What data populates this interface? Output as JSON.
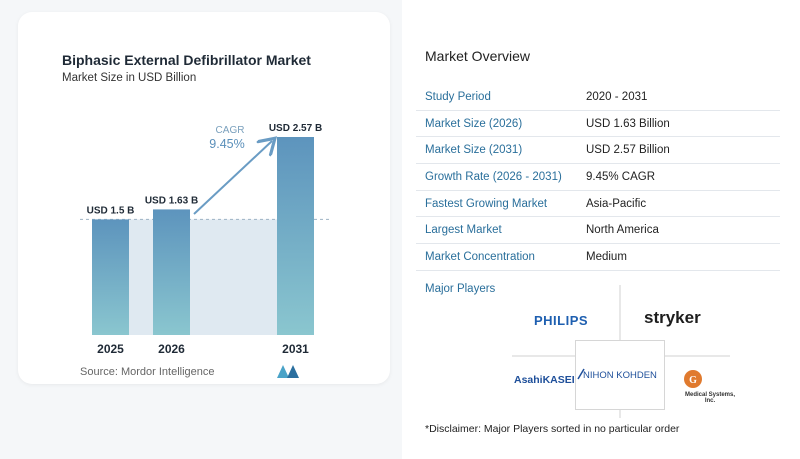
{
  "chart": {
    "title": "Biphasic External Defibrillator Market",
    "subtitle": "Market Size in USD Billion",
    "cagr_label": "CAGR",
    "cagr_value": "9.45%",
    "source": "Source:  Mordor Intelligence"
  },
  "chart_data": {
    "type": "bar",
    "categories": [
      "2025",
      "2026",
      "2031"
    ],
    "values": [
      1.5,
      1.63,
      2.57
    ],
    "value_labels": [
      "USD 1.5 B",
      "USD 1.63 B",
      "USD 2.57 B"
    ],
    "ylim": [
      0,
      2.6
    ],
    "annotations": [
      "CAGR",
      "9.45%"
    ]
  },
  "overview": {
    "title": "Market Overview",
    "rows": [
      {
        "key": "Study Period",
        "value": "2020 - 2031"
      },
      {
        "key": "Market Size (2026)",
        "value": "USD 1.63 Billion"
      },
      {
        "key": "Market Size (2031)",
        "value": "USD 2.57 Billion"
      },
      {
        "key": "Growth Rate (2026 - 2031)",
        "value": "9.45% CAGR"
      },
      {
        "key": "Fastest Growing Market",
        "value": "Asia-Pacific"
      },
      {
        "key": "Largest Market",
        "value": "North America"
      },
      {
        "key": "Market Concentration",
        "value": "Medium"
      }
    ],
    "players_label": "Major Players",
    "players": {
      "philips": "PHILIPS",
      "stryker": "stryker",
      "asahi": "AsahiKASEI",
      "nihon": "NIHON KOHDEN",
      "medsys": "Medical Systems, Inc."
    },
    "disclaimer": "*Disclaimer: Major Players sorted in no particular order"
  },
  "colors": {
    "bar_top": "#5d94bd",
    "bar_bottom": "#8ac6cf",
    "shade": "#dfe9f1",
    "arrow": "#6a9cc4",
    "key_text": "#2a6f9b"
  }
}
